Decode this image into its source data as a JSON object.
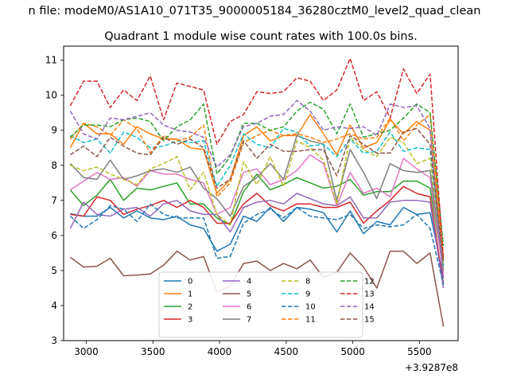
{
  "chart_data": {
    "type": "line",
    "suptitle": "n file: modeM0/AS1A10_071T35_9000005184_36280cztM0_level2_quad_clean",
    "title": "Quadrant 1 module wise count rates with 100.0s bins.",
    "xlabel": "",
    "ylabel": "",
    "x_offset_label": "+3.9287e8",
    "xlim": [
      2830,
      5790
    ],
    "ylim": [
      3,
      11.4
    ],
    "xticks": [
      3000,
      3500,
      4000,
      4500,
      5000,
      5500
    ],
    "yticks": [
      3,
      4,
      5,
      6,
      7,
      8,
      9,
      10,
      11
    ],
    "grid": false,
    "legend": {
      "placement": "lower-center",
      "columns": 4
    },
    "x": [
      2880,
      2980,
      3080,
      3180,
      3280,
      3380,
      3480,
      3580,
      3680,
      3780,
      3880,
      3980,
      4080,
      4180,
      4280,
      4380,
      4480,
      4580,
      4680,
      4780,
      4880,
      4980,
      5080,
      5180,
      5280,
      5380,
      5480,
      5580,
      5680
    ],
    "series": [
      {
        "name": "0",
        "color": "#1f77b4",
        "dash": "solid",
        "values": [
          6.62,
          6.55,
          6.55,
          6.8,
          6.5,
          6.7,
          6.5,
          6.45,
          6.55,
          6.3,
          6.2,
          5.55,
          5.75,
          6.55,
          6.4,
          6.8,
          6.4,
          6.8,
          6.75,
          6.65,
          6.1,
          6.7,
          6.05,
          6.4,
          6.3,
          6.8,
          6.6,
          6.65,
          4.8
        ]
      },
      {
        "name": "1",
        "color": "#ff7f0e",
        "dash": "solid",
        "values": [
          8.5,
          9.2,
          8.9,
          8.9,
          8.6,
          9.1,
          8.9,
          8.75,
          8.75,
          8.5,
          8.45,
          7.2,
          7.6,
          8.85,
          9.1,
          8.7,
          8.85,
          8.85,
          9.45,
          8.9,
          8.3,
          9.15,
          8.5,
          8.65,
          9.3,
          8.9,
          9.25,
          9.0,
          5.3
        ]
      },
      {
        "name": "2",
        "color": "#2ca02c",
        "dash": "solid",
        "values": [
          7.3,
          6.85,
          7.15,
          7.6,
          7.0,
          7.35,
          7.3,
          7.4,
          7.5,
          6.9,
          6.9,
          6.5,
          6.3,
          7.25,
          7.75,
          7.3,
          7.45,
          7.65,
          7.5,
          7.35,
          7.4,
          7.6,
          7.15,
          7.25,
          7.25,
          7.55,
          7.55,
          7.35,
          5.0
        ]
      },
      {
        "name": "3",
        "color": "#d62728",
        "dash": "solid",
        "values": [
          6.6,
          6.55,
          7.1,
          7.0,
          6.6,
          6.75,
          6.85,
          7.0,
          6.8,
          7.0,
          6.8,
          6.35,
          6.35,
          6.9,
          7.2,
          6.85,
          6.7,
          6.9,
          6.9,
          6.8,
          6.8,
          6.95,
          6.35,
          6.7,
          7.0,
          7.4,
          7.2,
          7.1,
          4.6
        ]
      },
      {
        "name": "4",
        "color": "#9467bd",
        "dash": "solid",
        "values": [
          6.2,
          6.95,
          6.6,
          6.55,
          6.75,
          6.8,
          6.55,
          6.9,
          7.0,
          6.7,
          6.6,
          6.6,
          6.1,
          6.8,
          6.95,
          7.0,
          6.9,
          7.2,
          7.05,
          6.9,
          6.85,
          7.1,
          6.5,
          6.5,
          6.95,
          7.0,
          7.0,
          6.95,
          4.5
        ]
      },
      {
        "name": "5",
        "color": "#8c564b",
        "dash": "solid",
        "values": [
          5.38,
          5.1,
          5.12,
          5.35,
          4.85,
          4.87,
          4.9,
          5.15,
          5.55,
          5.3,
          5.4,
          4.4,
          4.55,
          5.2,
          5.27,
          5.0,
          5.2,
          5.05,
          5.3,
          4.8,
          4.95,
          5.5,
          5.1,
          4.5,
          5.55,
          5.55,
          5.2,
          5.5,
          3.4
        ]
      },
      {
        "name": "6",
        "color": "#e377c2",
        "dash": "solid",
        "values": [
          7.3,
          7.55,
          7.8,
          7.6,
          7.65,
          7.4,
          7.85,
          7.75,
          7.75,
          7.6,
          7.5,
          6.6,
          6.8,
          7.8,
          7.9,
          7.45,
          7.6,
          7.85,
          8.3,
          8.05,
          6.85,
          7.8,
          7.2,
          7.35,
          7.1,
          8.2,
          7.9,
          7.65,
          4.9
        ]
      },
      {
        "name": "7",
        "color": "#7f7f7f",
        "dash": "solid",
        "values": [
          8.05,
          7.65,
          7.6,
          8.15,
          7.6,
          7.7,
          7.85,
          7.9,
          7.8,
          7.95,
          7.35,
          7.05,
          6.55,
          7.4,
          7.65,
          8.05,
          7.6,
          8.85,
          8.7,
          8.6,
          7.0,
          8.45,
          7.8,
          7.05,
          8.05,
          7.85,
          7.8,
          7.85,
          5.1
        ]
      },
      {
        "name": "8",
        "color": "#bcbd22",
        "dash": "dashed",
        "values": [
          8.0,
          7.85,
          7.95,
          7.75,
          7.6,
          7.45,
          7.9,
          8.05,
          8.25,
          7.3,
          7.8,
          6.6,
          6.3,
          8.1,
          7.45,
          8.25,
          7.4,
          8.7,
          8.5,
          8.15,
          6.9,
          8.8,
          8.45,
          8.25,
          8.8,
          8.65,
          8.05,
          8.2,
          5.15
        ]
      },
      {
        "name": "9",
        "color": "#17becf",
        "dash": "dashed",
        "values": [
          8.85,
          8.65,
          8.75,
          8.35,
          8.95,
          8.8,
          8.5,
          8.55,
          8.7,
          8.65,
          8.7,
          7.4,
          8.0,
          8.9,
          8.6,
          8.5,
          9.05,
          8.95,
          8.55,
          8.6,
          8.25,
          8.75,
          8.35,
          8.4,
          8.95,
          8.4,
          8.5,
          8.45,
          5.15
        ]
      },
      {
        "name": "10",
        "color": "#1f77b4",
        "dash": "dashed",
        "values": [
          6.55,
          6.2,
          6.45,
          6.85,
          6.75,
          6.4,
          6.9,
          6.6,
          6.5,
          6.5,
          6.5,
          5.35,
          5.4,
          6.35,
          6.6,
          6.75,
          6.5,
          6.8,
          6.55,
          6.5,
          6.45,
          6.6,
          6.2,
          6.3,
          6.25,
          6.3,
          6.6,
          6.2,
          4.6
        ]
      },
      {
        "name": "11",
        "color": "#ff7f0e",
        "dash": "dashed",
        "values": [
          8.75,
          9.2,
          9.1,
          8.85,
          9.3,
          9.05,
          8.35,
          8.85,
          8.7,
          8.8,
          9.15,
          7.1,
          7.5,
          8.65,
          8.85,
          9.0,
          8.85,
          8.9,
          8.8,
          8.65,
          8.75,
          8.9,
          8.75,
          8.8,
          9.35,
          8.7,
          9.15,
          9.45,
          5.4
        ]
      },
      {
        "name": "12",
        "color": "#2ca02c",
        "dash": "dashed",
        "values": [
          8.8,
          9.15,
          9.15,
          9.1,
          9.3,
          9.35,
          9.25,
          8.7,
          9.1,
          9.3,
          9.75,
          7.75,
          8.25,
          9.2,
          9.2,
          9.0,
          9.1,
          9.55,
          9.8,
          9.6,
          8.9,
          9.75,
          8.8,
          8.9,
          9.0,
          9.35,
          9.75,
          9.5,
          5.7
        ]
      },
      {
        "name": "13",
        "color": "#d62728",
        "dash": "dashed",
        "values": [
          9.7,
          10.4,
          10.4,
          9.65,
          10.15,
          9.85,
          10.55,
          9.3,
          10.35,
          10.25,
          10.15,
          8.6,
          9.25,
          9.45,
          10.1,
          10.05,
          10.1,
          10.5,
          10.4,
          9.85,
          10.15,
          11.05,
          9.85,
          10.1,
          9.35,
          10.75,
          10.05,
          10.6,
          5.3
        ]
      },
      {
        "name": "14",
        "color": "#9467bd",
        "dash": "dashed",
        "values": [
          9.55,
          8.9,
          8.75,
          9.35,
          9.3,
          9.4,
          9.5,
          9.15,
          9.0,
          8.95,
          8.8,
          7.95,
          8.3,
          9.1,
          9.2,
          9.4,
          9.45,
          9.85,
          9.55,
          9.0,
          9.1,
          9.05,
          9.1,
          8.85,
          9.75,
          9.65,
          9.7,
          9.05,
          4.7
        ]
      },
      {
        "name": "15",
        "color": "#8c564b",
        "dash": "dashed",
        "values": [
          8.3,
          8.55,
          8.25,
          8.8,
          8.55,
          8.35,
          8.3,
          8.8,
          8.6,
          8.75,
          8.5,
          7.35,
          7.6,
          8.7,
          8.2,
          8.6,
          8.4,
          8.4,
          8.45,
          8.45,
          7.7,
          8.85,
          8.6,
          8.35,
          8.35,
          8.95,
          9.05,
          8.6,
          5.2
        ]
      }
    ]
  }
}
